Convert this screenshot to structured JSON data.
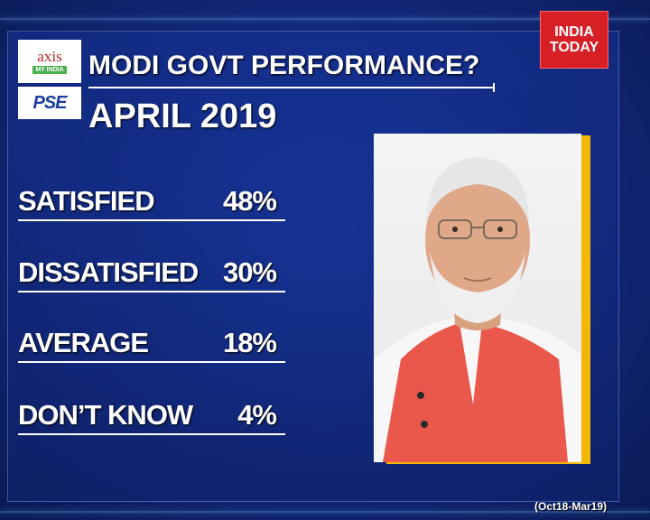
{
  "brand": {
    "line1": "INDIA",
    "line2": "TODAY"
  },
  "logos": {
    "axis_word": "axis",
    "axis_sub": "MY INDIA",
    "pse_main": "PSE",
    "pse_tick": ""
  },
  "header": {
    "title": "MODI GOVT PERFORMANCE?",
    "subtitle": "APRIL 2019"
  },
  "results": [
    {
      "label": "SATISFIED",
      "value": "48%"
    },
    {
      "label": "DISSATISFIED",
      "value": "30%"
    },
    {
      "label": "AVERAGE",
      "value": "18%"
    },
    {
      "label": "DON’T KNOW",
      "value": "4%"
    }
  ],
  "footer": {
    "period": "(Oct18-Mar19)"
  },
  "colors": {
    "accent_red": "#d71f26",
    "photo_border": "#f2b705",
    "background": "#132a80"
  }
}
